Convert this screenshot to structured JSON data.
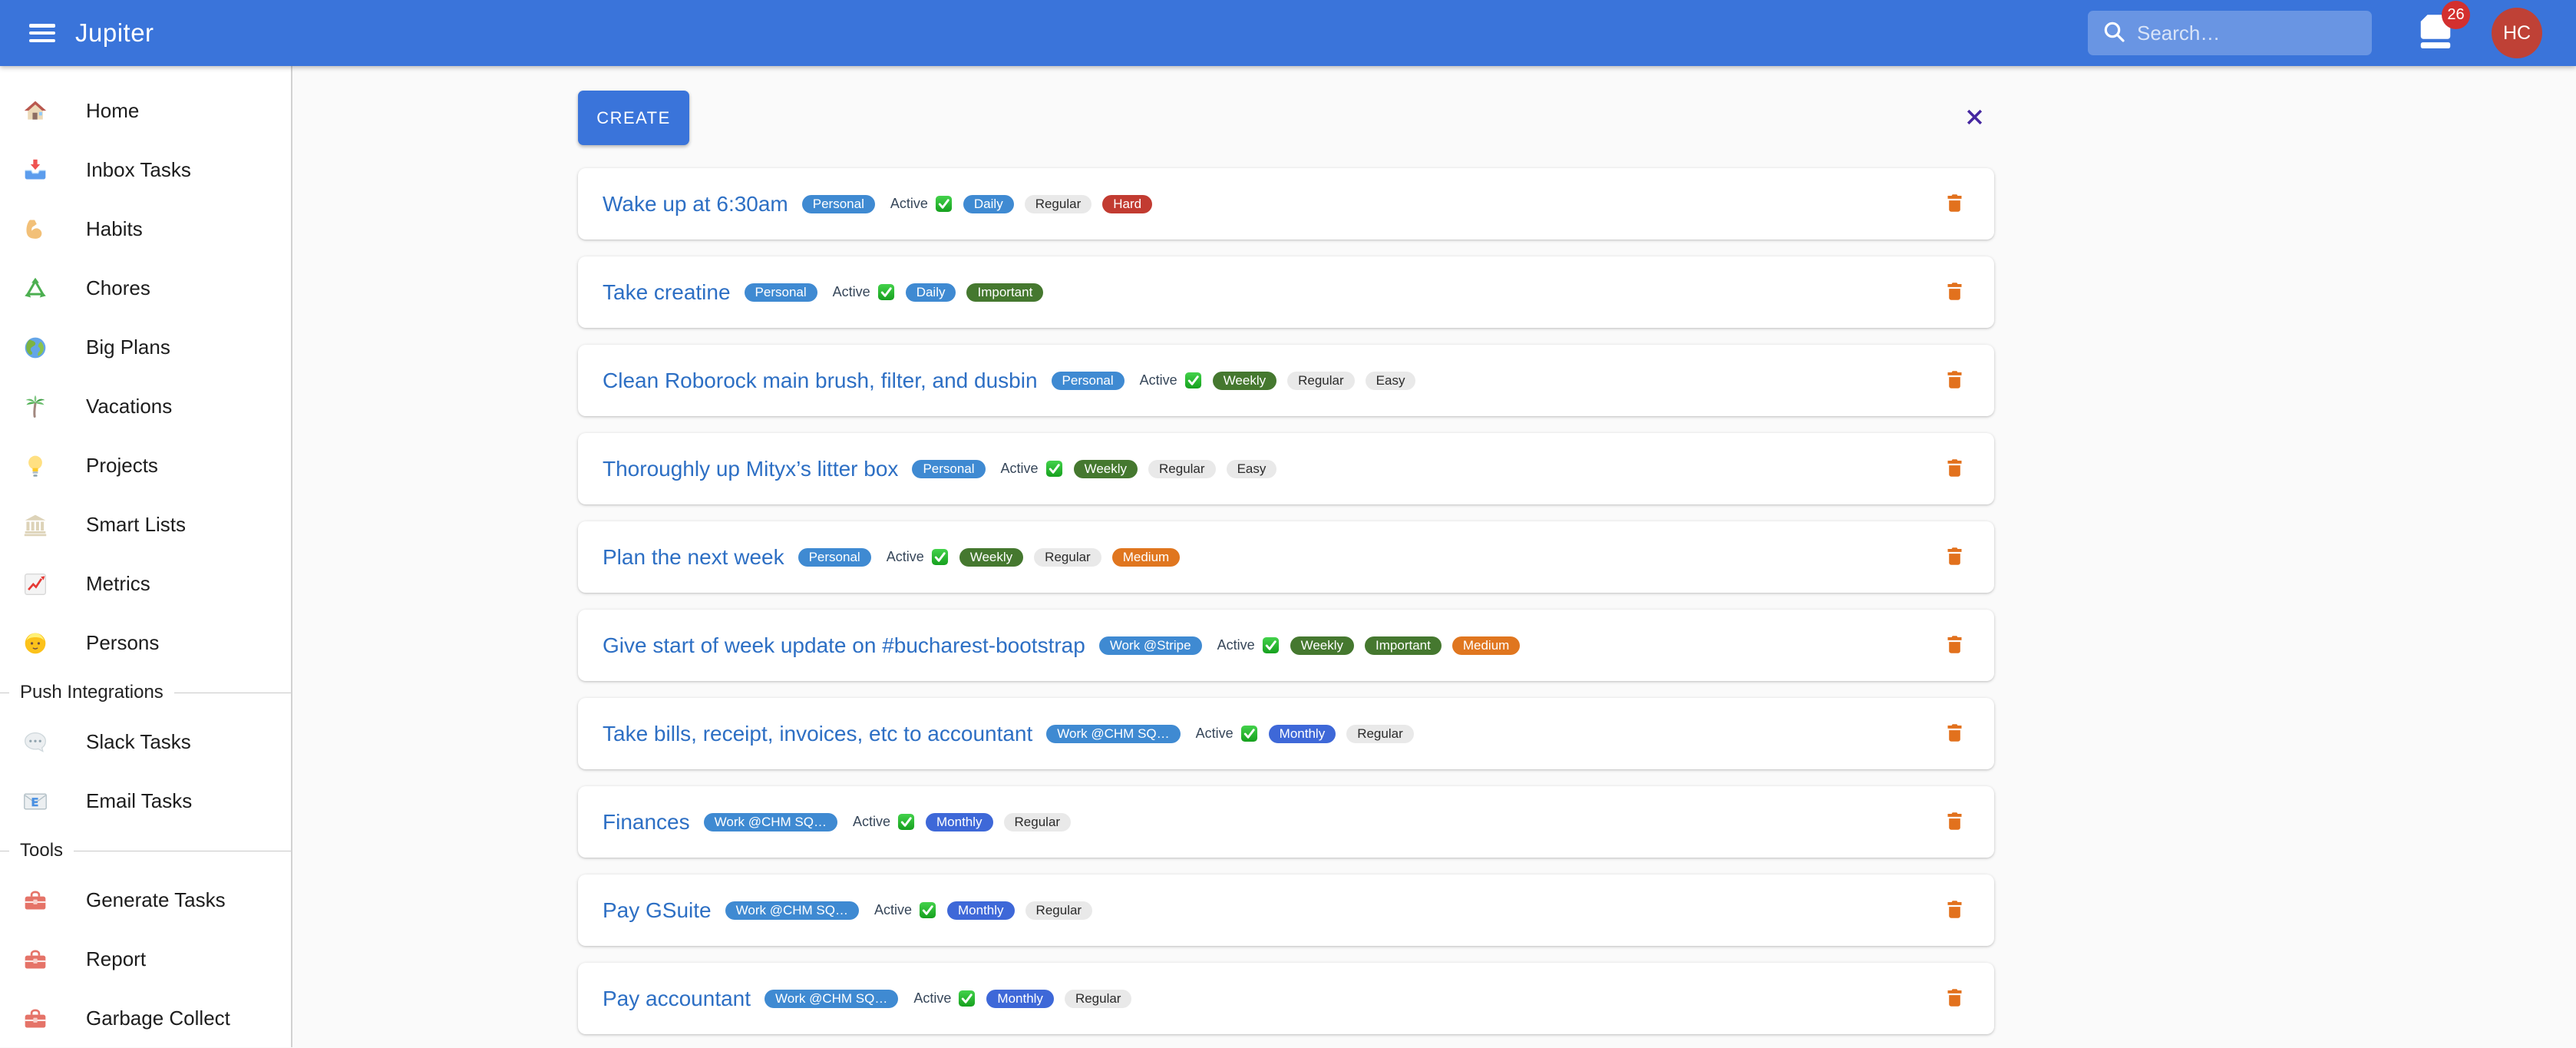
{
  "header": {
    "title": "Jupiter",
    "search": {
      "placeholder": "Search…"
    },
    "notification_count": "26",
    "avatar_initials": "HC"
  },
  "sidebar": {
    "items": [
      {
        "label": "Home",
        "icon": "home"
      },
      {
        "label": "Inbox Tasks",
        "icon": "inbox"
      },
      {
        "label": "Habits",
        "icon": "biceps"
      },
      {
        "label": "Chores",
        "icon": "recycle"
      },
      {
        "label": "Big Plans",
        "icon": "globe"
      },
      {
        "label": "Vacations",
        "icon": "palm-tree"
      },
      {
        "label": "Projects",
        "icon": "light-bulb"
      },
      {
        "label": "Smart Lists",
        "icon": "classical-building"
      },
      {
        "label": "Metrics",
        "icon": "chart-increasing"
      },
      {
        "label": "Persons",
        "icon": "person"
      }
    ],
    "sections": [
      {
        "label": "Push Integrations",
        "items": [
          {
            "label": "Slack Tasks",
            "icon": "speech-balloon"
          },
          {
            "label": "Email Tasks",
            "icon": "email"
          }
        ]
      },
      {
        "label": "Tools",
        "items": [
          {
            "label": "Generate Tasks",
            "icon": "toolbox"
          },
          {
            "label": "Report",
            "icon": "toolbox"
          },
          {
            "label": "Garbage Collect",
            "icon": "toolbox"
          }
        ]
      }
    ]
  },
  "main": {
    "create_label": "CREATE",
    "active_label": "Active",
    "tasks": [
      {
        "title": "Wake up at 6:30am",
        "project": "Personal",
        "project_color": "blue",
        "badges": [
          {
            "type": "period",
            "label": "Daily",
            "color": "blue"
          },
          {
            "type": "kind",
            "label": "Regular",
            "color": "gray"
          },
          {
            "type": "difficulty",
            "label": "Hard",
            "color": "red"
          }
        ]
      },
      {
        "title": "Take creatine",
        "project": "Personal",
        "project_color": "blue",
        "badges": [
          {
            "type": "period",
            "label": "Daily",
            "color": "blue"
          },
          {
            "type": "kind",
            "label": "Important",
            "color": "green"
          }
        ]
      },
      {
        "title": "Clean Roborock main brush, filter, and dusbin",
        "project": "Personal",
        "project_color": "blue",
        "badges": [
          {
            "type": "period",
            "label": "Weekly",
            "color": "green"
          },
          {
            "type": "kind",
            "label": "Regular",
            "color": "gray"
          },
          {
            "type": "difficulty",
            "label": "Easy",
            "color": "gray"
          }
        ]
      },
      {
        "title": "Thoroughly up Mityx’s litter box",
        "project": "Personal",
        "project_color": "blue",
        "badges": [
          {
            "type": "period",
            "label": "Weekly",
            "color": "green"
          },
          {
            "type": "kind",
            "label": "Regular",
            "color": "gray"
          },
          {
            "type": "difficulty",
            "label": "Easy",
            "color": "gray"
          }
        ]
      },
      {
        "title": "Plan the next week",
        "project": "Personal",
        "project_color": "blue",
        "badges": [
          {
            "type": "period",
            "label": "Weekly",
            "color": "green"
          },
          {
            "type": "kind",
            "label": "Regular",
            "color": "gray"
          },
          {
            "type": "difficulty",
            "label": "Medium",
            "color": "orange"
          }
        ]
      },
      {
        "title": "Give start of week update on #bucharest-bootstrap",
        "project": "Work @Stripe",
        "project_color": "blue",
        "badges": [
          {
            "type": "period",
            "label": "Weekly",
            "color": "green"
          },
          {
            "type": "kind",
            "label": "Important",
            "color": "green"
          },
          {
            "type": "difficulty",
            "label": "Medium",
            "color": "orange"
          }
        ]
      },
      {
        "title": "Take bills, receipt, invoices, etc to accountant",
        "project": "Work @CHM SQ…",
        "project_color": "blue",
        "badges": [
          {
            "type": "period",
            "label": "Monthly",
            "color": "royal"
          },
          {
            "type": "kind",
            "label": "Regular",
            "color": "gray"
          }
        ]
      },
      {
        "title": "Finances",
        "project": "Work @CHM SQ…",
        "project_color": "blue",
        "badges": [
          {
            "type": "period",
            "label": "Monthly",
            "color": "royal"
          },
          {
            "type": "kind",
            "label": "Regular",
            "color": "gray"
          }
        ]
      },
      {
        "title": "Pay GSuite",
        "project": "Work @CHM SQ…",
        "project_color": "blue",
        "badges": [
          {
            "type": "period",
            "label": "Monthly",
            "color": "royal"
          },
          {
            "type": "kind",
            "label": "Regular",
            "color": "gray"
          }
        ]
      },
      {
        "title": "Pay accountant",
        "project": "Work @CHM SQ…",
        "project_color": "blue",
        "badges": [
          {
            "type": "period",
            "label": "Monthly",
            "color": "royal"
          },
          {
            "type": "kind",
            "label": "Regular",
            "color": "gray"
          }
        ]
      }
    ]
  },
  "colors": {
    "header_blue": "#3a74da",
    "pill_blue": "#3f8ad2",
    "pill_royal_blue": "#3e68d8",
    "pill_green": "#45782f",
    "pill_red": "#c23b31",
    "pill_orange": "#e0761f",
    "pill_gray": "#e9e9e9",
    "link_blue": "#2d6fc4",
    "trash_orange": "#e2711d",
    "close_purple": "#4527a0",
    "avatar_red": "#bf4136",
    "badge_red": "#d3302f",
    "check_green": "#21b421"
  }
}
